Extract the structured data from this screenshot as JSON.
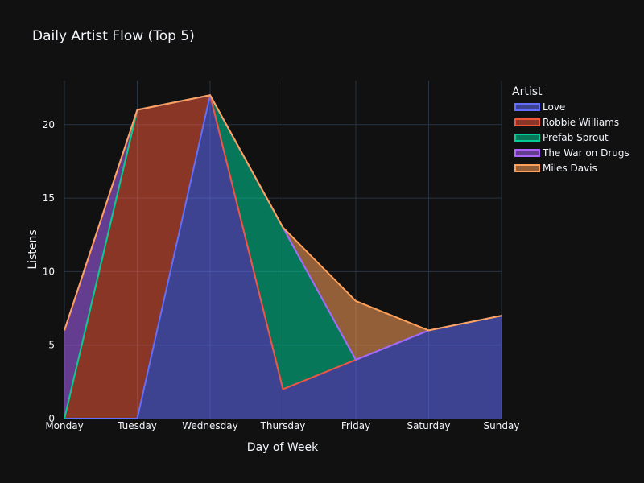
{
  "chart_data": {
    "type": "area",
    "stacked": true,
    "title": "Daily Artist Flow (Top 5)",
    "xlabel": "Day of Week",
    "ylabel": "Listens",
    "categories": [
      "Monday",
      "Tuesday",
      "Wednesday",
      "Thursday",
      "Friday",
      "Saturday",
      "Sunday"
    ],
    "ylim": [
      0,
      23
    ],
    "yticks": [
      0,
      5,
      10,
      15,
      20
    ],
    "grid": true,
    "legend": {
      "title": "Artist",
      "position": "top-right"
    },
    "series": [
      {
        "name": "Love",
        "values": [
          0,
          0,
          22,
          2,
          4,
          6,
          7
        ],
        "color": "#636efa"
      },
      {
        "name": "Robbie Williams",
        "values": [
          0,
          21,
          0,
          0,
          0,
          0,
          0
        ],
        "color": "#ef553b"
      },
      {
        "name": "Prefab Sprout",
        "values": [
          0,
          0,
          0,
          11,
          0,
          0,
          0
        ],
        "color": "#00cc96"
      },
      {
        "name": "The War on Drugs",
        "values": [
          6,
          0,
          0,
          0,
          0,
          0,
          0
        ],
        "color": "#ab63fa"
      },
      {
        "name": "Miles Davis",
        "values": [
          0,
          0,
          0,
          0,
          4,
          0,
          0
        ],
        "color": "#ffa15a"
      }
    ]
  }
}
